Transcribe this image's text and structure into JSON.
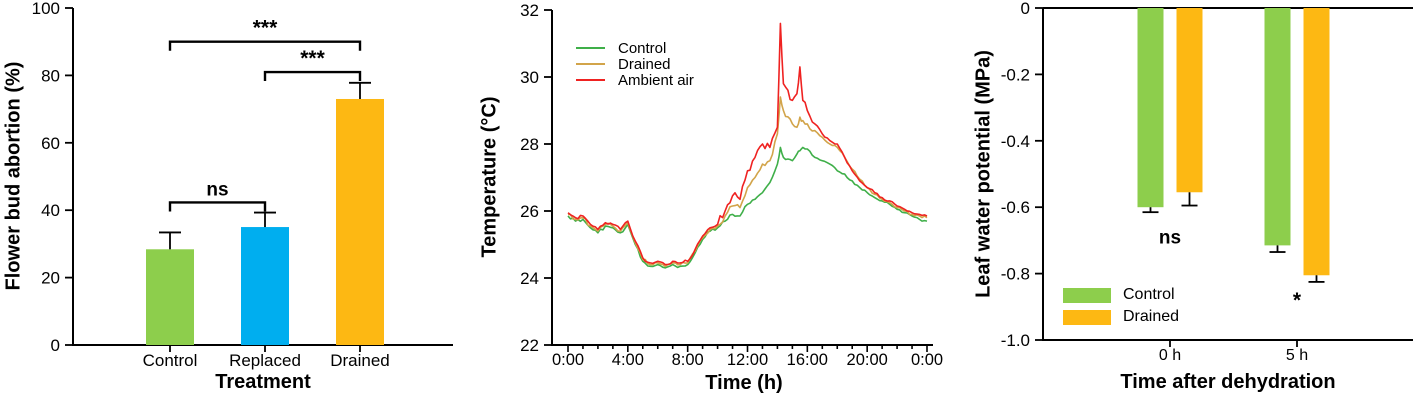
{
  "figure": {
    "background": "#ffffff",
    "axis_color": "#000000"
  },
  "chart_data": [
    {
      "type": "bar",
      "title": "",
      "xlabel": "Treatment",
      "ylabel": "Flower bud abortion (%)",
      "ylim": [
        0,
        100
      ],
      "yticks": [
        0,
        20,
        40,
        60,
        80,
        100
      ],
      "categories": [
        "Control",
        "Replaced",
        "Drained"
      ],
      "values": [
        28.4,
        35.0,
        73.0
      ],
      "errors": [
        5.0,
        4.3,
        4.8
      ],
      "bar_colors": [
        "#8DCE4C",
        "#00AEEF",
        "#FDB813"
      ],
      "grid": false,
      "significance": [
        {
          "from": 0,
          "to": 2,
          "label": "***",
          "y": 90.0
        },
        {
          "from": 1,
          "to": 2,
          "label": "***",
          "y": 81.0
        },
        {
          "from": 0,
          "to": 1,
          "label": "ns",
          "y": 42.3
        }
      ]
    },
    {
      "type": "line",
      "title": "",
      "xlabel": "Time (h)",
      "ylabel": "Temperature (°C)",
      "ylim": [
        22,
        32
      ],
      "yticks": [
        22,
        24,
        26,
        28,
        30,
        32
      ],
      "xlim": [
        0,
        24
      ],
      "xticks_major": {
        "values": [
          0,
          4,
          8,
          12,
          16,
          20,
          24
        ],
        "labels": [
          "0:00",
          "4:00",
          "8:00",
          "12:00",
          "16:00",
          "20:00",
          "0:00"
        ]
      },
      "xticks_minor_step": 1,
      "grid": false,
      "legend": {
        "position": "top-left"
      },
      "jitter": {
        "base": 0.055,
        "day_amp": [
          0.05,
          0.08,
          0.13
        ],
        "night_amp": 0.04
      },
      "x": [
        0,
        0.5,
        1,
        1.5,
        2,
        2.5,
        3,
        3.5,
        4,
        4.5,
        5,
        5.5,
        6,
        6.5,
        7,
        7.5,
        8,
        8.5,
        9,
        9.5,
        10,
        10.5,
        11,
        11.5,
        12,
        12.5,
        13,
        13.5,
        14,
        14.2,
        14.4,
        15,
        15.3,
        15.5,
        15.7,
        16,
        16.5,
        17,
        17.5,
        18,
        18.5,
        19,
        19.5,
        20,
        20.5,
        21,
        21.5,
        22,
        22.5,
        23,
        23.5,
        24
      ],
      "series": [
        {
          "name": "Control",
          "color": "#3FAF49",
          "values": [
            25.85,
            25.7,
            25.75,
            25.5,
            25.35,
            25.55,
            25.5,
            25.35,
            25.6,
            25.0,
            24.5,
            24.35,
            24.4,
            24.3,
            24.4,
            24.35,
            24.4,
            24.75,
            25.15,
            25.4,
            25.5,
            25.7,
            25.9,
            25.85,
            26.2,
            26.35,
            26.55,
            26.85,
            27.4,
            27.9,
            27.6,
            27.5,
            27.7,
            27.8,
            27.9,
            27.85,
            27.6,
            27.5,
            27.4,
            27.2,
            27.1,
            26.9,
            26.7,
            26.55,
            26.4,
            26.3,
            26.2,
            26.05,
            25.95,
            25.85,
            25.75,
            25.7
          ]
        },
        {
          "name": "Drained",
          "color": "#D2A44A",
          "values": [
            25.9,
            25.75,
            25.8,
            25.55,
            25.4,
            25.6,
            25.55,
            25.4,
            25.65,
            25.05,
            24.55,
            24.4,
            24.45,
            24.35,
            24.45,
            24.4,
            24.45,
            24.8,
            25.2,
            25.45,
            25.55,
            25.85,
            26.15,
            26.1,
            26.7,
            27.0,
            27.4,
            27.5,
            28.3,
            29.4,
            29.0,
            28.6,
            28.5,
            28.8,
            28.7,
            28.6,
            28.4,
            28.2,
            28.0,
            27.9,
            27.6,
            27.25,
            26.95,
            26.7,
            26.5,
            26.35,
            26.25,
            26.1,
            26.0,
            25.9,
            25.85,
            25.8
          ]
        },
        {
          "name": "Ambient air",
          "color": "#EF2221",
          "values": [
            25.95,
            25.8,
            25.85,
            25.6,
            25.45,
            25.65,
            25.6,
            25.45,
            25.7,
            25.1,
            24.6,
            24.45,
            24.5,
            24.4,
            24.5,
            24.45,
            24.5,
            24.85,
            25.25,
            25.5,
            25.6,
            26.0,
            26.45,
            26.35,
            27.2,
            27.6,
            28.0,
            27.9,
            28.5,
            31.6,
            29.8,
            29.3,
            29.5,
            30.3,
            29.3,
            29.0,
            28.6,
            28.3,
            28.1,
            28.0,
            27.6,
            27.2,
            26.9,
            26.7,
            26.55,
            26.4,
            26.3,
            26.15,
            26.05,
            25.95,
            25.9,
            25.85
          ]
        }
      ]
    },
    {
      "type": "bar",
      "title": "",
      "xlabel": "Time after dehydration",
      "ylabel": "Leaf water potential (MPa)",
      "ylim": [
        -1.0,
        0
      ],
      "yticks": [
        0,
        -0.2,
        -0.4,
        -0.6,
        -0.8,
        -1.0
      ],
      "ytick_labels": [
        "0",
        "-0.2",
        "-0.4",
        "-0.6",
        "-0.8",
        "-1.0"
      ],
      "categories": [
        "0 h",
        "5 h"
      ],
      "grid": false,
      "legend": {
        "position": "bottom-left"
      },
      "series": [
        {
          "name": "Control",
          "color": "#8DCE4C",
          "values": [
            -0.6,
            -0.715
          ],
          "errors": [
            0.015,
            0.02
          ]
        },
        {
          "name": "Drained",
          "color": "#FDB813",
          "values": [
            -0.555,
            -0.805
          ],
          "errors": [
            0.04,
            0.02
          ]
        }
      ],
      "annotations": [
        {
          "group": 0,
          "label": "ns",
          "y": -0.71
        },
        {
          "group": 1,
          "label": "*",
          "y": -0.9
        }
      ]
    }
  ]
}
